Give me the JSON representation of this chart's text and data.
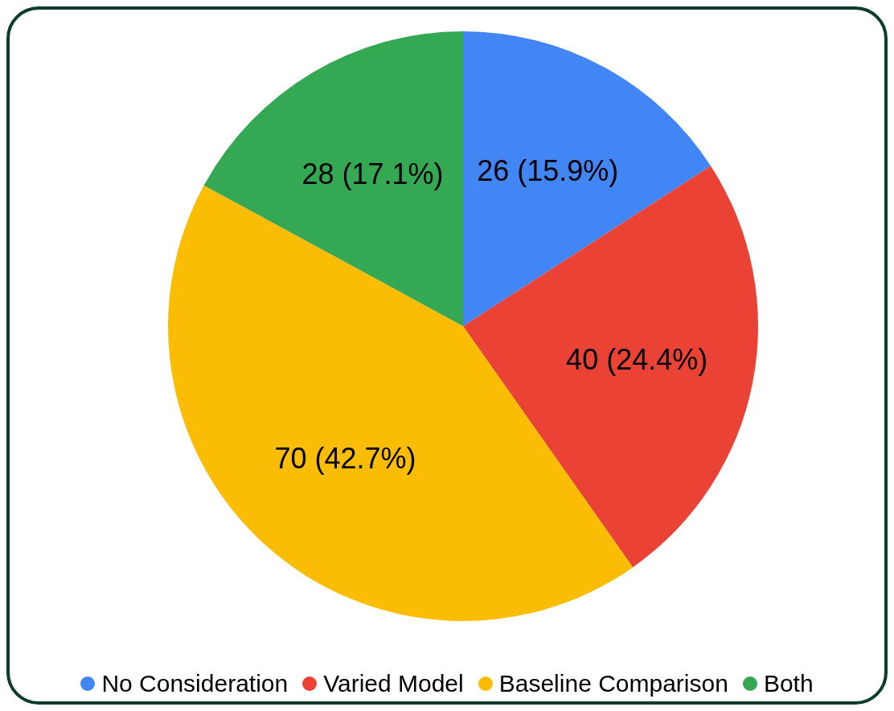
{
  "chart_data": {
    "type": "pie",
    "categories": [
      "No Consideration",
      "Varied Model",
      "Baseline Comparison",
      "Both"
    ],
    "values": [
      26,
      40,
      70,
      28
    ],
    "colors": [
      "#4285f4",
      "#ea4335",
      "#fbbc04",
      "#34a853"
    ],
    "value_labels": [
      "26 (15.9%)",
      "40 (24.4%)",
      "70 (42.7%)",
      "28 (17.1%)"
    ],
    "legend": "bottom"
  }
}
